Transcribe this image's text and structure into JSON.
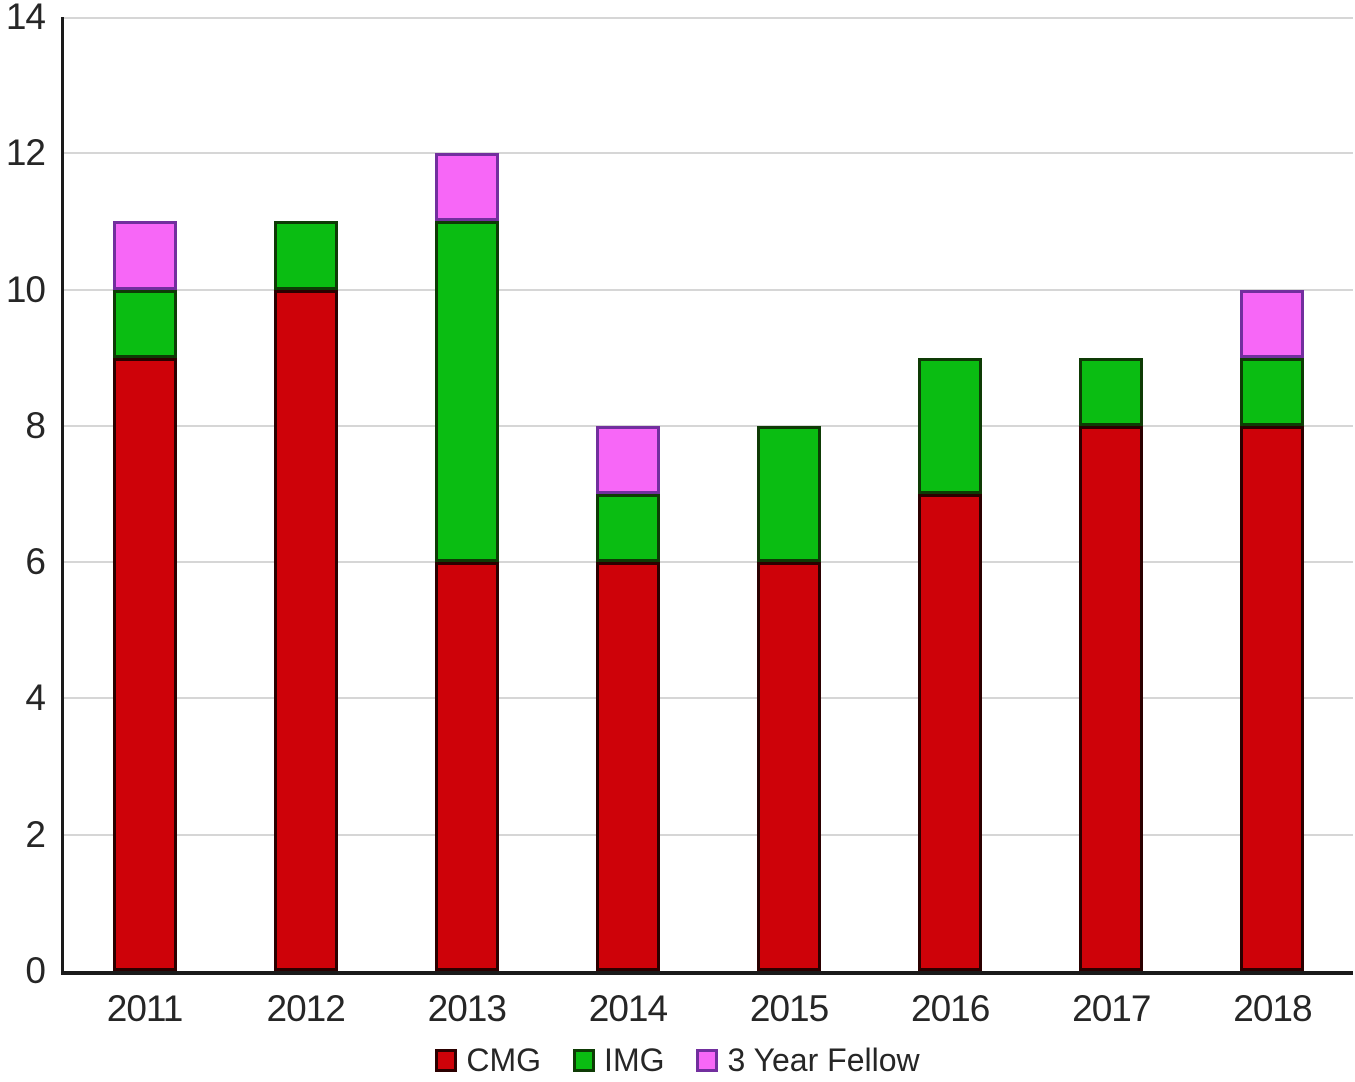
{
  "chart_data": {
    "type": "bar",
    "stacked": true,
    "title": "",
    "xlabel": "",
    "ylabel": "",
    "categories": [
      "2011",
      "2012",
      "2013",
      "2014",
      "2015",
      "2016",
      "2017",
      "2018"
    ],
    "series": [
      {
        "name": "CMG",
        "color": "#CE0209",
        "border_color": "#2B0000",
        "values": [
          9,
          10,
          6,
          6,
          6,
          7,
          8,
          8
        ]
      },
      {
        "name": "IMG",
        "color": "#0ABD12",
        "border_color": "#0E3B05",
        "values": [
          1,
          1,
          5,
          1,
          2,
          2,
          1,
          1
        ]
      },
      {
        "name": "3 Year Fellow",
        "color": "#F767F7",
        "border_color": "#722F9E",
        "values": [
          1,
          0,
          1,
          1,
          0,
          0,
          0,
          1
        ]
      }
    ],
    "totals": [
      11,
      11,
      12,
      8,
      8,
      9,
      9,
      10
    ],
    "ylim": [
      0,
      14
    ],
    "ytick_interval": 2,
    "yticks": [
      "0",
      "2",
      "4",
      "6",
      "8",
      "10",
      "12",
      "14"
    ],
    "grid": true,
    "legend_position": "bottom"
  },
  "colors": {
    "background": "#FFFFFF",
    "gridline": "#D6D6D6",
    "axis": "#1A1A1A",
    "text": "#262626"
  }
}
